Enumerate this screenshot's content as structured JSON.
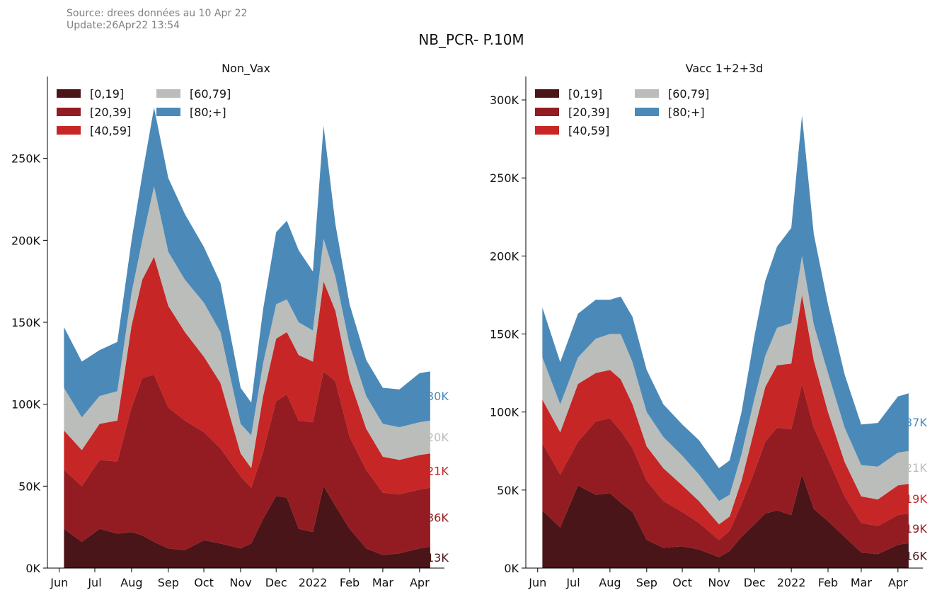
{
  "header": {
    "source_line1": "Source: drees données au 10 Apr 22",
    "source_line2": "Update:26Apr22 13:54"
  },
  "title": "NB_PCR- P.10M",
  "colors": {
    "[0,19]": "#4a1518",
    "[20,39]": "#931c22",
    "[40,59]": "#c62625",
    "[60,79]": "#babdba",
    "[80;+]": "#4b8ab8"
  },
  "chart_data": [
    {
      "type": "area",
      "stacked": true,
      "title": "Non_Vax",
      "xlabel": "",
      "ylabel": "",
      "ylim": [
        0,
        300000
      ],
      "y_ticks": [
        0,
        50000,
        100000,
        150000,
        200000,
        250000
      ],
      "y_tick_labels": [
        "0K",
        "50K",
        "100K",
        "150K",
        "200K",
        "250K"
      ],
      "x_tick_labels": [
        "Jun",
        "Jul",
        "Aug",
        "Sep",
        "Oct",
        "Nov",
        "Dec",
        "2022",
        "Feb",
        "Mar",
        "Apr"
      ],
      "x_tick_dates": [
        "2021-06-01",
        "2021-07-01",
        "2021-08-01",
        "2021-09-01",
        "2021-10-01",
        "2021-11-01",
        "2021-12-01",
        "2022-01-01",
        "2022-02-01",
        "2022-03-01",
        "2022-04-01"
      ],
      "x_range": [
        "2021-05-22",
        "2022-04-22"
      ],
      "legend": {
        "placement": "top-left",
        "columns": 2,
        "entries": [
          "[0,19]",
          "[20,39]",
          "[40,59]",
          "[60,79]",
          "[80;+]"
        ]
      },
      "x": [
        "2021-06-05",
        "2021-06-20",
        "2021-07-05",
        "2021-07-20",
        "2021-08-01",
        "2021-08-10",
        "2021-08-20",
        "2021-09-01",
        "2021-09-15",
        "2021-10-01",
        "2021-10-15",
        "2021-11-01",
        "2021-11-10",
        "2021-11-20",
        "2021-12-01",
        "2021-12-10",
        "2021-12-20",
        "2022-01-01",
        "2022-01-10",
        "2022-01-20",
        "2022-02-01",
        "2022-02-15",
        "2022-03-01",
        "2022-03-15",
        "2022-04-01",
        "2022-04-10"
      ],
      "series": [
        {
          "name": "[0,19]",
          "values": [
            24000,
            16000,
            24000,
            21000,
            22000,
            20000,
            16000,
            12000,
            11000,
            17000,
            15000,
            12000,
            15000,
            30000,
            44000,
            43000,
            24000,
            22000,
            50000,
            38000,
            24000,
            12000,
            8000,
            9000,
            12000,
            13000
          ]
        },
        {
          "name": "[20,39]",
          "values": [
            36000,
            34000,
            42000,
            44000,
            76000,
            96000,
            102000,
            86000,
            79000,
            66000,
            58000,
            44000,
            34000,
            41000,
            58000,
            63000,
            66000,
            67000,
            70000,
            76000,
            56000,
            48000,
            38000,
            36000,
            36000,
            36000
          ]
        },
        {
          "name": "[40,59]",
          "values": [
            24000,
            22000,
            22000,
            25000,
            50000,
            60000,
            72000,
            62000,
            54000,
            46000,
            40000,
            14000,
            12000,
            34000,
            38000,
            38000,
            40000,
            37000,
            55000,
            43000,
            35000,
            25000,
            22000,
            21000,
            21000,
            21000
          ]
        },
        {
          "name": "[60,79]",
          "values": [
            26000,
            20000,
            17000,
            18000,
            20000,
            24000,
            43000,
            33000,
            32000,
            33000,
            31000,
            18000,
            20000,
            20000,
            21000,
            20000,
            20000,
            19000,
            26000,
            21000,
            21000,
            20000,
            20000,
            20000,
            20000,
            20000
          ]
        },
        {
          "name": "[80;+]",
          "values": [
            37000,
            34000,
            28000,
            30000,
            32000,
            40000,
            48000,
            45000,
            40000,
            34000,
            30000,
            22000,
            20000,
            33000,
            44000,
            48000,
            44000,
            36000,
            69000,
            32000,
            25000,
            22000,
            22000,
            23000,
            30000,
            30000
          ]
        }
      ],
      "end_labels": [
        {
          "series": "[80;+]",
          "text": "30K"
        },
        {
          "series": "[60,79]",
          "text": "20K"
        },
        {
          "series": "[40,59]",
          "text": "21K"
        },
        {
          "series": "[20,39]",
          "text": "36K"
        },
        {
          "series": "[0,19]",
          "text": "13K"
        }
      ]
    },
    {
      "type": "area",
      "stacked": true,
      "title": "Vacc 1+2+3d",
      "xlabel": "",
      "ylabel": "",
      "ylim": [
        0,
        315000
      ],
      "y_ticks": [
        0,
        50000,
        100000,
        150000,
        200000,
        250000,
        300000
      ],
      "y_tick_labels": [
        "0K",
        "50K",
        "100K",
        "150K",
        "200K",
        "250K",
        "300K"
      ],
      "x_tick_labels": [
        "Jun",
        "Jul",
        "Aug",
        "Sep",
        "Oct",
        "Nov",
        "Dec",
        "2022",
        "Feb",
        "Mar",
        "Apr"
      ],
      "x_tick_dates": [
        "2021-06-01",
        "2021-07-01",
        "2021-08-01",
        "2021-09-01",
        "2021-10-01",
        "2021-11-01",
        "2021-12-01",
        "2022-01-01",
        "2022-02-01",
        "2022-03-01",
        "2022-04-01"
      ],
      "x_range": [
        "2021-05-22",
        "2022-04-22"
      ],
      "legend": {
        "placement": "top-left",
        "columns": 2,
        "entries": [
          "[0,19]",
          "[20,39]",
          "[40,59]",
          "[60,79]",
          "[80;+]"
        ]
      },
      "x": [
        "2021-06-05",
        "2021-06-20",
        "2021-07-05",
        "2021-07-20",
        "2021-08-01",
        "2021-08-10",
        "2021-08-20",
        "2021-09-01",
        "2021-09-15",
        "2021-10-01",
        "2021-10-15",
        "2021-11-01",
        "2021-11-10",
        "2021-11-20",
        "2021-12-01",
        "2021-12-10",
        "2021-12-20",
        "2022-01-01",
        "2022-01-10",
        "2022-01-20",
        "2022-02-01",
        "2022-02-15",
        "2022-03-01",
        "2022-03-15",
        "2022-04-01",
        "2022-04-10"
      ],
      "series": [
        {
          "name": "[0,19]",
          "values": [
            37000,
            26000,
            53000,
            47000,
            48000,
            42000,
            36000,
            18000,
            13000,
            14000,
            12000,
            7000,
            11000,
            20000,
            28000,
            35000,
            37000,
            34000,
            60000,
            38000,
            30000,
            20000,
            10000,
            9000,
            15000,
            16000
          ]
        },
        {
          "name": "[20,39]",
          "values": [
            43000,
            34000,
            28000,
            47000,
            48000,
            46000,
            41000,
            38000,
            30000,
            22000,
            17000,
            11000,
            13000,
            21000,
            34000,
            46000,
            53000,
            55000,
            58000,
            52000,
            40000,
            26000,
            19000,
            18000,
            19000,
            19000
          ]
        },
        {
          "name": "[40,59]",
          "values": [
            28000,
            27000,
            37000,
            31000,
            31000,
            33000,
            28000,
            22000,
            21000,
            17000,
            14000,
            10000,
            9000,
            15000,
            27000,
            35000,
            40000,
            42000,
            57000,
            43000,
            30000,
            22000,
            17000,
            17000,
            19000,
            19000
          ]
        },
        {
          "name": "[60,79]",
          "values": [
            27000,
            18000,
            17000,
            22000,
            23000,
            29000,
            27000,
            22000,
            20000,
            19000,
            17000,
            15000,
            14000,
            17000,
            20000,
            20000,
            24000,
            26000,
            25000,
            23000,
            25000,
            22000,
            20000,
            21000,
            21000,
            21000
          ]
        },
        {
          "name": "[80;+]",
          "values": [
            32000,
            27000,
            28000,
            25000,
            22000,
            24000,
            29000,
            27000,
            21000,
            20000,
            22000,
            21000,
            22000,
            27000,
            40000,
            48000,
            52000,
            61000,
            90000,
            58000,
            44000,
            34000,
            26000,
            28000,
            36000,
            37000
          ]
        }
      ],
      "end_labels": [
        {
          "series": "[80;+]",
          "text": "37K"
        },
        {
          "series": "[60,79]",
          "text": "21K"
        },
        {
          "series": "[40,59]",
          "text": "19K"
        },
        {
          "series": "[20,39]",
          "text": "19K"
        },
        {
          "series": "[0,19]",
          "text": "16K"
        }
      ]
    }
  ]
}
